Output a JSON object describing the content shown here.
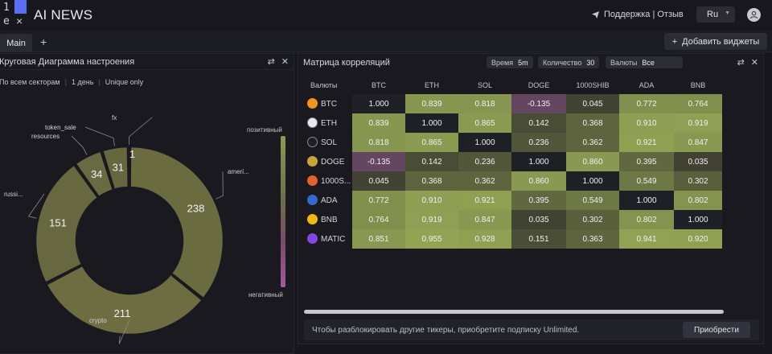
{
  "app": {
    "logo_num": "1",
    "logo_e": "e",
    "logo_x": "×",
    "title": "AI NEWS",
    "support": "Поддержка | Отзыв",
    "lang": "Ru"
  },
  "tabs": {
    "main": "Main",
    "add": "+",
    "add_widgets": "Добавить виджеты"
  },
  "sentiment": {
    "title": "Круговая Диаграмма настроения",
    "filters": [
      "По всем секторам",
      "1 день",
      "Unique only"
    ],
    "legend_positive": "позитивный",
    "legend_negative": "негативный",
    "slices": [
      {
        "label": "ameri...",
        "value": 238,
        "color": "#6b6b40"
      },
      {
        "label": "crypto",
        "value": 211,
        "color": "#6d6d41"
      },
      {
        "label": "russi...",
        "value": 151,
        "color": "#686840"
      },
      {
        "label": "resources",
        "value": 34,
        "color": "#6a6a42"
      },
      {
        "label": "token_sale",
        "value": 31,
        "color": "#66663f"
      },
      {
        "label": "fx",
        "value": 1,
        "color": "#66663f"
      }
    ]
  },
  "correlation": {
    "title": "Матрица корреляций",
    "time_label": "Время",
    "time_value": "5m",
    "count_label": "Количество",
    "count_value": "30",
    "currency_label": "Валюты",
    "currency_value": "Все",
    "corner": "Валюты",
    "columns": [
      "BTC",
      "ETH",
      "SOL",
      "DOGE",
      "1000SHIB",
      "ADA",
      "BNB"
    ],
    "rows": [
      {
        "name": "BTC",
        "color": "#f2931b",
        "values": [
          "1.000",
          "0.839",
          "0.818",
          "-0.135",
          "0.045",
          "0.772",
          "0.764"
        ]
      },
      {
        "name": "ETH",
        "color": "#e8e8ee",
        "values": [
          "0.839",
          "1.000",
          "0.865",
          "0.142",
          "0.368",
          "0.910",
          "0.919"
        ]
      },
      {
        "name": "SOL",
        "color": "#1f1f28",
        "values": [
          "0.818",
          "0.865",
          "1.000",
          "0.236",
          "0.362",
          "0.921",
          "0.847"
        ]
      },
      {
        "name": "DOGE",
        "color": "#c9a43a",
        "values": [
          "-0.135",
          "0.142",
          "0.236",
          "1.000",
          "0.860",
          "0.395",
          "0.035"
        ]
      },
      {
        "name": "1000S...",
        "color": "#e0622e",
        "values": [
          "0.045",
          "0.368",
          "0.362",
          "0.860",
          "1.000",
          "0.549",
          "0.302"
        ]
      },
      {
        "name": "ADA",
        "color": "#3468d1",
        "values": [
          "0.772",
          "0.910",
          "0.921",
          "0.395",
          "0.549",
          "1.000",
          "0.802"
        ]
      },
      {
        "name": "BNB",
        "color": "#f0b90b",
        "values": [
          "0.764",
          "0.919",
          "0.847",
          "0.035",
          "0.302",
          "0.802",
          "1.000"
        ]
      },
      {
        "name": "MATIC",
        "color": "#8247e5",
        "values": [
          "0.851",
          "0.955",
          "0.928",
          "0.151",
          "0.363",
          "0.941",
          "0.920"
        ]
      }
    ],
    "upgrade_text": "Чтобы разблокировать другие тикеры, приобретите подписку Unlimited.",
    "buy_label": "Приобрести"
  }
}
